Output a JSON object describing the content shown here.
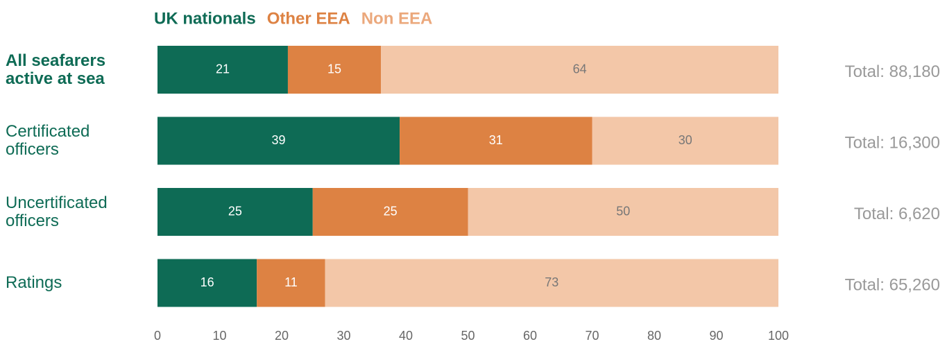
{
  "chart_data": {
    "type": "stacked_barh",
    "categories": [
      "All seafarers active at sea",
      "Certificated officers",
      "Uncertificated officers",
      "Ratings"
    ],
    "series": [
      {
        "name": "UK nationals",
        "color": "#0e6b55",
        "values": [
          21,
          39,
          25,
          16
        ]
      },
      {
        "name": "Other EEA",
        "color": "#dd8243",
        "values": [
          15,
          31,
          25,
          11
        ]
      },
      {
        "name": "Non EEA",
        "color": "#f3c7a8",
        "values": [
          64,
          30,
          50,
          73
        ]
      }
    ],
    "totals": [
      "Total: 88,180",
      "Total: 16,300",
      "Total: 6,620",
      "Total: 65,260"
    ],
    "xlim": [
      0,
      100
    ],
    "xticks": [
      0,
      10,
      20,
      30,
      40,
      50,
      60,
      70,
      80,
      90,
      100
    ],
    "legend": "top"
  }
}
